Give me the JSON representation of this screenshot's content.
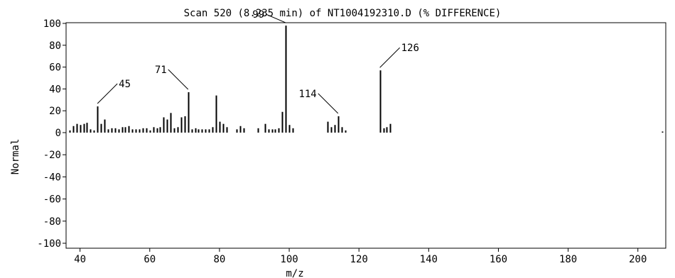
{
  "chart_data": {
    "type": "bar",
    "title": "Scan 520 (8.235 min) of NT1004192310.D (% DIFFERENCE)",
    "xlabel": "m/z",
    "ylabel": "Normal",
    "xlim": [
      36,
      208
    ],
    "ylim": [
      -100,
      100
    ],
    "xticks": [
      40,
      60,
      80,
      100,
      120,
      140,
      160,
      180,
      200
    ],
    "yticks": [
      100,
      80,
      60,
      40,
      20,
      0,
      -20,
      -40,
      -60,
      -80,
      -100
    ],
    "grid": false,
    "colors": {
      "bars": "#000000",
      "axes": "#000000",
      "background": "#ffffff"
    },
    "peaks": [
      {
        "mz": 37,
        "value": 2
      },
      {
        "mz": 38,
        "value": 6
      },
      {
        "mz": 39,
        "value": 8
      },
      {
        "mz": 40,
        "value": 7
      },
      {
        "mz": 41,
        "value": 8
      },
      {
        "mz": 42,
        "value": 9
      },
      {
        "mz": 43,
        "value": 3
      },
      {
        "mz": 44,
        "value": 2
      },
      {
        "mz": 45,
        "value": 24
      },
      {
        "mz": 46,
        "value": 8
      },
      {
        "mz": 47,
        "value": 12
      },
      {
        "mz": 48,
        "value": 3
      },
      {
        "mz": 49,
        "value": 4
      },
      {
        "mz": 50,
        "value": 4
      },
      {
        "mz": 51,
        "value": 3
      },
      {
        "mz": 52,
        "value": 5
      },
      {
        "mz": 53,
        "value": 5
      },
      {
        "mz": 54,
        "value": 6
      },
      {
        "mz": 55,
        "value": 3
      },
      {
        "mz": 56,
        "value": 3
      },
      {
        "mz": 57,
        "value": 3
      },
      {
        "mz": 58,
        "value": 4
      },
      {
        "mz": 59,
        "value": 4
      },
      {
        "mz": 60,
        "value": 2
      },
      {
        "mz": 61,
        "value": 5
      },
      {
        "mz": 62,
        "value": 4
      },
      {
        "mz": 63,
        "value": 5
      },
      {
        "mz": 64,
        "value": 14
      },
      {
        "mz": 65,
        "value": 12
      },
      {
        "mz": 66,
        "value": 18
      },
      {
        "mz": 67,
        "value": 4
      },
      {
        "mz": 68,
        "value": 5
      },
      {
        "mz": 69,
        "value": 14
      },
      {
        "mz": 70,
        "value": 15
      },
      {
        "mz": 71,
        "value": 37
      },
      {
        "mz": 72,
        "value": 3
      },
      {
        "mz": 73,
        "value": 4
      },
      {
        "mz": 74,
        "value": 3
      },
      {
        "mz": 75,
        "value": 3
      },
      {
        "mz": 76,
        "value": 3
      },
      {
        "mz": 77,
        "value": 3
      },
      {
        "mz": 78,
        "value": 5
      },
      {
        "mz": 79,
        "value": 34
      },
      {
        "mz": 80,
        "value": 10
      },
      {
        "mz": 81,
        "value": 8
      },
      {
        "mz": 82,
        "value": 5
      },
      {
        "mz": 85,
        "value": 3
      },
      {
        "mz": 86,
        "value": 6
      },
      {
        "mz": 87,
        "value": 4
      },
      {
        "mz": 91,
        "value": 4
      },
      {
        "mz": 93,
        "value": 8
      },
      {
        "mz": 94,
        "value": 3
      },
      {
        "mz": 95,
        "value": 3
      },
      {
        "mz": 96,
        "value": 3
      },
      {
        "mz": 97,
        "value": 4
      },
      {
        "mz": 98,
        "value": 19
      },
      {
        "mz": 99,
        "value": 98
      },
      {
        "mz": 100,
        "value": 7
      },
      {
        "mz": 101,
        "value": 4
      },
      {
        "mz": 111,
        "value": 10
      },
      {
        "mz": 112,
        "value": 5
      },
      {
        "mz": 113,
        "value": 7
      },
      {
        "mz": 114,
        "value": 15
      },
      {
        "mz": 115,
        "value": 5
      },
      {
        "mz": 116,
        "value": 2
      },
      {
        "mz": 126,
        "value": 57
      },
      {
        "mz": 127,
        "value": 4
      },
      {
        "mz": 128,
        "value": 5
      },
      {
        "mz": 129,
        "value": 8
      },
      {
        "mz": 207,
        "value": 1
      }
    ],
    "annotations": [
      {
        "label": "45",
        "mz": 45,
        "value": 24,
        "dir": "right"
      },
      {
        "label": "71",
        "mz": 71,
        "value": 37,
        "dir": "left"
      },
      {
        "label": "99",
        "mz": 99,
        "value": 98,
        "dir": "left"
      },
      {
        "label": "114",
        "mz": 114,
        "value": 15,
        "dir": "left"
      },
      {
        "label": "126",
        "mz": 126,
        "value": 57,
        "dir": "right"
      }
    ]
  }
}
